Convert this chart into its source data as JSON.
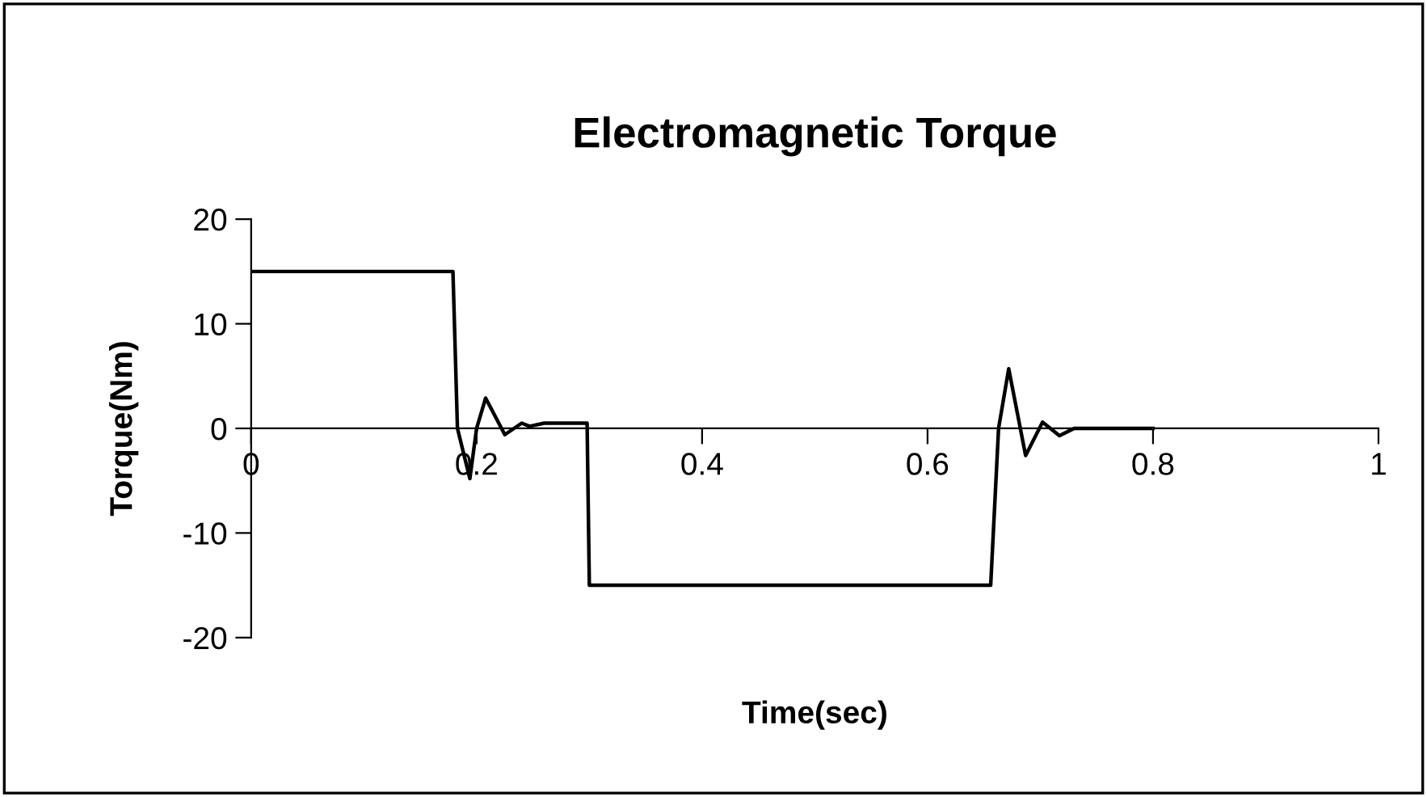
{
  "chart_data": {
    "type": "line",
    "title": "Electromagnetic Torque",
    "xlabel": "Time(sec)",
    "ylabel": "Torque(Nm)",
    "series": [
      {
        "color": "#000000",
        "x": [
          0,
          0.179,
          0.183,
          0.194,
          0.2,
          0.208,
          0.225,
          0.24,
          0.247,
          0.26,
          0.298,
          0.3,
          0.656,
          0.663,
          0.672,
          0.687,
          0.702,
          0.717,
          0.73,
          0.8
        ],
        "values": [
          15,
          15,
          0,
          -4.8,
          0,
          2.9,
          -0.6,
          0.5,
          0.2,
          0.5,
          0.5,
          -15,
          -15,
          0,
          5.7,
          -2.6,
          0.6,
          -0.7,
          0,
          0
        ]
      }
    ],
    "xlim": [
      0,
      1
    ],
    "ylim": [
      -20,
      20
    ],
    "xticks": [
      0,
      0.2,
      0.4,
      0.6,
      0.8,
      1
    ],
    "yticks": [
      -20,
      -10,
      0,
      10,
      20
    ],
    "grid": false,
    "legend": false,
    "marker": "none",
    "line_style": "solid"
  }
}
